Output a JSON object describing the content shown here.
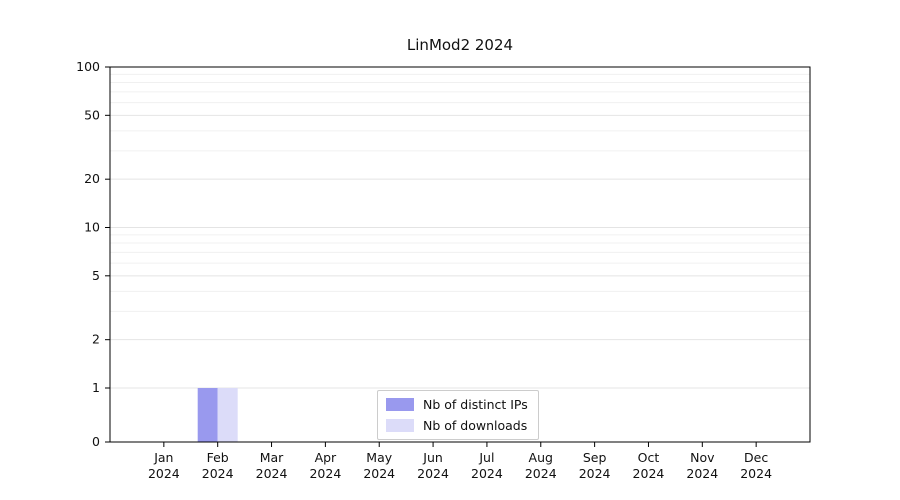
{
  "chart_data": {
    "type": "bar",
    "title": "LinMod2 2024",
    "categories": [
      "Jan",
      "Feb",
      "Mar",
      "Apr",
      "May",
      "Jun",
      "Jul",
      "Aug",
      "Sep",
      "Oct",
      "Nov",
      "Dec"
    ],
    "year_label": "2024",
    "series": [
      {
        "name": "Nb of distinct IPs",
        "color": "#9999ee",
        "values": [
          0,
          1,
          0,
          0,
          0,
          0,
          0,
          0,
          0,
          0,
          0,
          0
        ]
      },
      {
        "name": "Nb of downloads",
        "color": "#dcdcf9",
        "values": [
          0,
          1,
          0,
          0,
          0,
          0,
          0,
          0,
          0,
          0,
          0,
          0
        ]
      }
    ],
    "y_ticks": [
      0,
      1,
      2,
      5,
      10,
      20,
      50,
      100
    ],
    "y_minor_gridlines": [
      3,
      4,
      6,
      7,
      8,
      9,
      30,
      40,
      60,
      70,
      80,
      90
    ],
    "y_scale": "symlog",
    "ylim": [
      0,
      100
    ],
    "grid": true,
    "legend_position": "bottom-center",
    "colors": {
      "grid_minor": "#f0f0f0",
      "grid_major": "#e4e4e4",
      "axis": "#000000",
      "tick_text": "#111111"
    }
  }
}
